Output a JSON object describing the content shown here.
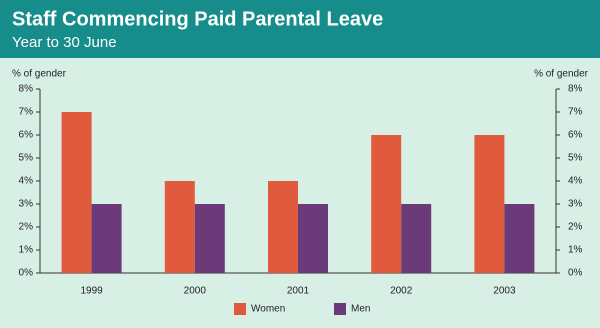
{
  "chart_data": {
    "type": "bar",
    "title": "Staff Commencing Paid Parental Leave",
    "subtitle": "Year to 30 June",
    "y_label": "% of gender",
    "y2_label": "% of gender",
    "categories": [
      "1999",
      "2000",
      "2001",
      "2002",
      "2003"
    ],
    "series": [
      {
        "name": "Women",
        "color": "#e05a3e",
        "values": [
          7,
          4,
          4,
          6,
          6
        ]
      },
      {
        "name": "Men",
        "color": "#6b3a78",
        "values": [
          3,
          3,
          3,
          3,
          3
        ]
      }
    ],
    "ylim": [
      0,
      8
    ],
    "yticks": [
      {
        "value": 0,
        "label": "0%"
      },
      {
        "value": 1,
        "label": "1%"
      },
      {
        "value": 2,
        "label": "2%"
      },
      {
        "value": 3,
        "label": "3%"
      },
      {
        "value": 4,
        "label": "4%"
      },
      {
        "value": 5,
        "label": "5%"
      },
      {
        "value": 6,
        "label": "6%"
      },
      {
        "value": 7,
        "label": "7%"
      },
      {
        "value": 8,
        "label": "8%"
      }
    ],
    "y2lim": [
      0,
      8
    ],
    "y2ticks": [
      {
        "value": 0,
        "label": "0%"
      },
      {
        "value": 1,
        "label": "1%"
      },
      {
        "value": 2,
        "label": "2%"
      },
      {
        "value": 3,
        "label": "3%"
      },
      {
        "value": 4,
        "label": "4%"
      },
      {
        "value": 5,
        "label": "5%"
      },
      {
        "value": 6,
        "label": "6%"
      },
      {
        "value": 7,
        "label": "7%"
      },
      {
        "value": 8,
        "label": "8%"
      }
    ],
    "grid": false,
    "legend": "bottom"
  }
}
